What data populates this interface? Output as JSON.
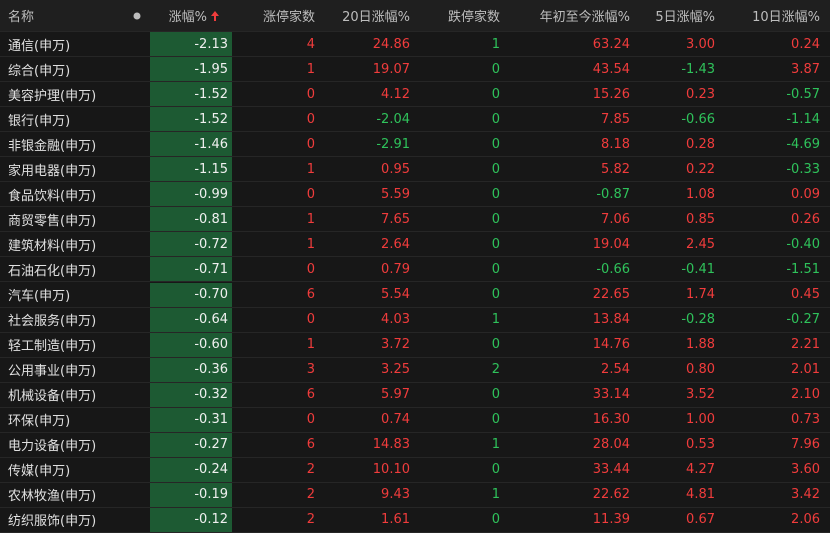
{
  "header": {
    "columns": [
      "名称",
      "涨幅%",
      "涨停家数",
      "20日涨幅%",
      "跌停家数",
      "年初至今涨幅%",
      "5日涨幅%",
      "10日涨幅%"
    ]
  },
  "table": {
    "rows": [
      [
        "通信(申万)",
        "-2.13",
        "4",
        "24.86",
        "1",
        "63.24",
        "3.00",
        "0.24"
      ],
      [
        "综合(申万)",
        "-1.95",
        "1",
        "19.07",
        "0",
        "43.54",
        "-1.43",
        "3.87"
      ],
      [
        "美容护理(申万)",
        "-1.52",
        "0",
        "4.12",
        "0",
        "15.26",
        "0.23",
        "-0.57"
      ],
      [
        "银行(申万)",
        "-1.52",
        "0",
        "-2.04",
        "0",
        "7.85",
        "-0.66",
        "-1.14"
      ],
      [
        "非银金融(申万)",
        "-1.46",
        "0",
        "-2.91",
        "0",
        "8.18",
        "0.28",
        "-4.69"
      ],
      [
        "家用电器(申万)",
        "-1.15",
        "1",
        "0.95",
        "0",
        "5.82",
        "0.22",
        "-0.33"
      ],
      [
        "食品饮料(申万)",
        "-0.99",
        "0",
        "5.59",
        "0",
        "-0.87",
        "1.08",
        "0.09"
      ],
      [
        "商贸零售(申万)",
        "-0.81",
        "1",
        "7.65",
        "0",
        "7.06",
        "0.85",
        "0.26"
      ],
      [
        "建筑材料(申万)",
        "-0.72",
        "1",
        "2.64",
        "0",
        "19.04",
        "2.45",
        "-0.40"
      ],
      [
        "石油石化(申万)",
        "-0.71",
        "0",
        "0.79",
        "0",
        "-0.66",
        "-0.41",
        "-1.51"
      ],
      [
        "汽车(申万)",
        "-0.70",
        "6",
        "5.54",
        "0",
        "22.65",
        "1.74",
        "0.45"
      ],
      [
        "社会服务(申万)",
        "-0.64",
        "0",
        "4.03",
        "1",
        "13.84",
        "-0.28",
        "-0.27"
      ],
      [
        "轻工制造(申万)",
        "-0.60",
        "1",
        "3.72",
        "0",
        "14.76",
        "1.88",
        "2.21"
      ],
      [
        "公用事业(申万)",
        "-0.36",
        "3",
        "3.25",
        "2",
        "2.54",
        "0.80",
        "2.01"
      ],
      [
        "机械设备(申万)",
        "-0.32",
        "6",
        "5.97",
        "0",
        "33.14",
        "3.52",
        "2.10"
      ],
      [
        "环保(申万)",
        "-0.31",
        "0",
        "0.74",
        "0",
        "16.30",
        "1.00",
        "0.73"
      ],
      [
        "电力设备(申万)",
        "-0.27",
        "6",
        "14.83",
        "1",
        "28.04",
        "0.53",
        "7.96"
      ],
      [
        "传媒(申万)",
        "-0.24",
        "2",
        "10.10",
        "0",
        "33.44",
        "4.27",
        "3.60"
      ],
      [
        "农林牧渔(申万)",
        "-0.19",
        "2",
        "9.43",
        "1",
        "22.62",
        "4.81",
        "3.42"
      ],
      [
        "纺织服饰(申万)",
        "-0.12",
        "2",
        "1.61",
        "0",
        "11.39",
        "0.67",
        "2.06"
      ]
    ]
  }
}
